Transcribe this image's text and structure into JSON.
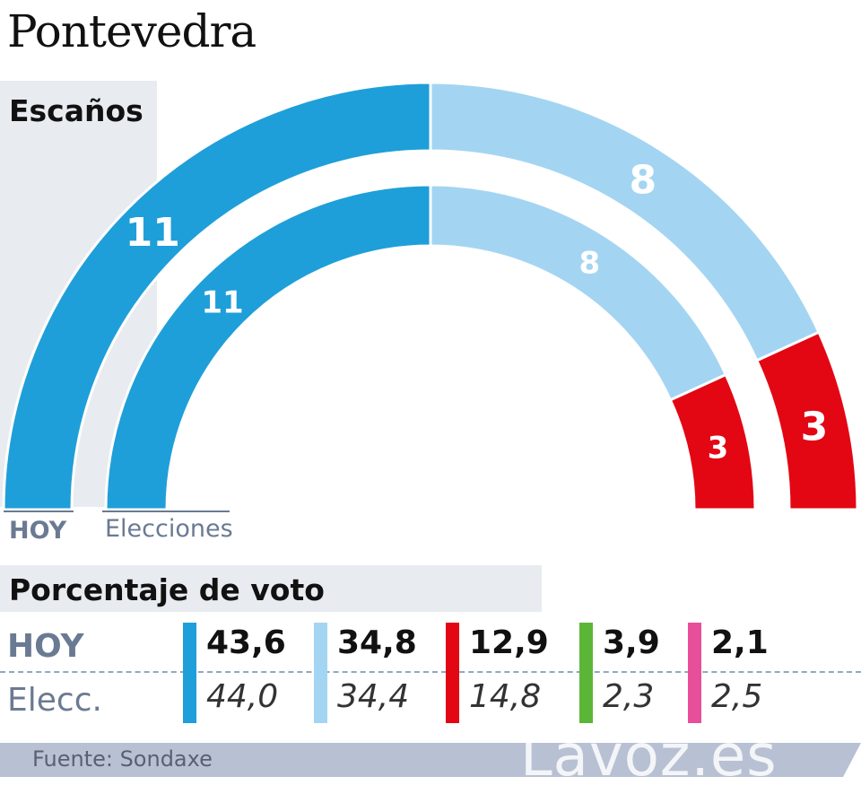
{
  "title": "Pontevedra",
  "chart_data": [
    {
      "type": "semicircle",
      "title": "Escaños",
      "rings": [
        {
          "name": "HOY",
          "values": [
            11,
            8,
            3
          ]
        },
        {
          "name": "Elecciones",
          "values": [
            11,
            8,
            3
          ]
        }
      ],
      "colors": [
        "#1e9fd9",
        "#a3d5f2",
        "#e30613"
      ]
    },
    {
      "type": "table",
      "title": "Porcentaje de voto",
      "rows": [
        "HOY",
        "Elecc."
      ],
      "series": [
        {
          "color": "#1e9fd9",
          "hoy": "43,6",
          "elecc": "44,0"
        },
        {
          "color": "#a3d5f2",
          "hoy": "34,8",
          "elecc": "34,4"
        },
        {
          "color": "#e30613",
          "hoy": "12,9",
          "elecc": "14,8"
        },
        {
          "color": "#5bb638",
          "hoy": "3,9",
          "elecc": "2,3"
        },
        {
          "color": "#e84f9b",
          "hoy": "2,1",
          "elecc": "2,5"
        }
      ]
    }
  ],
  "source": "Fuente: Sondaxe",
  "watermark": "Lavoz.es"
}
